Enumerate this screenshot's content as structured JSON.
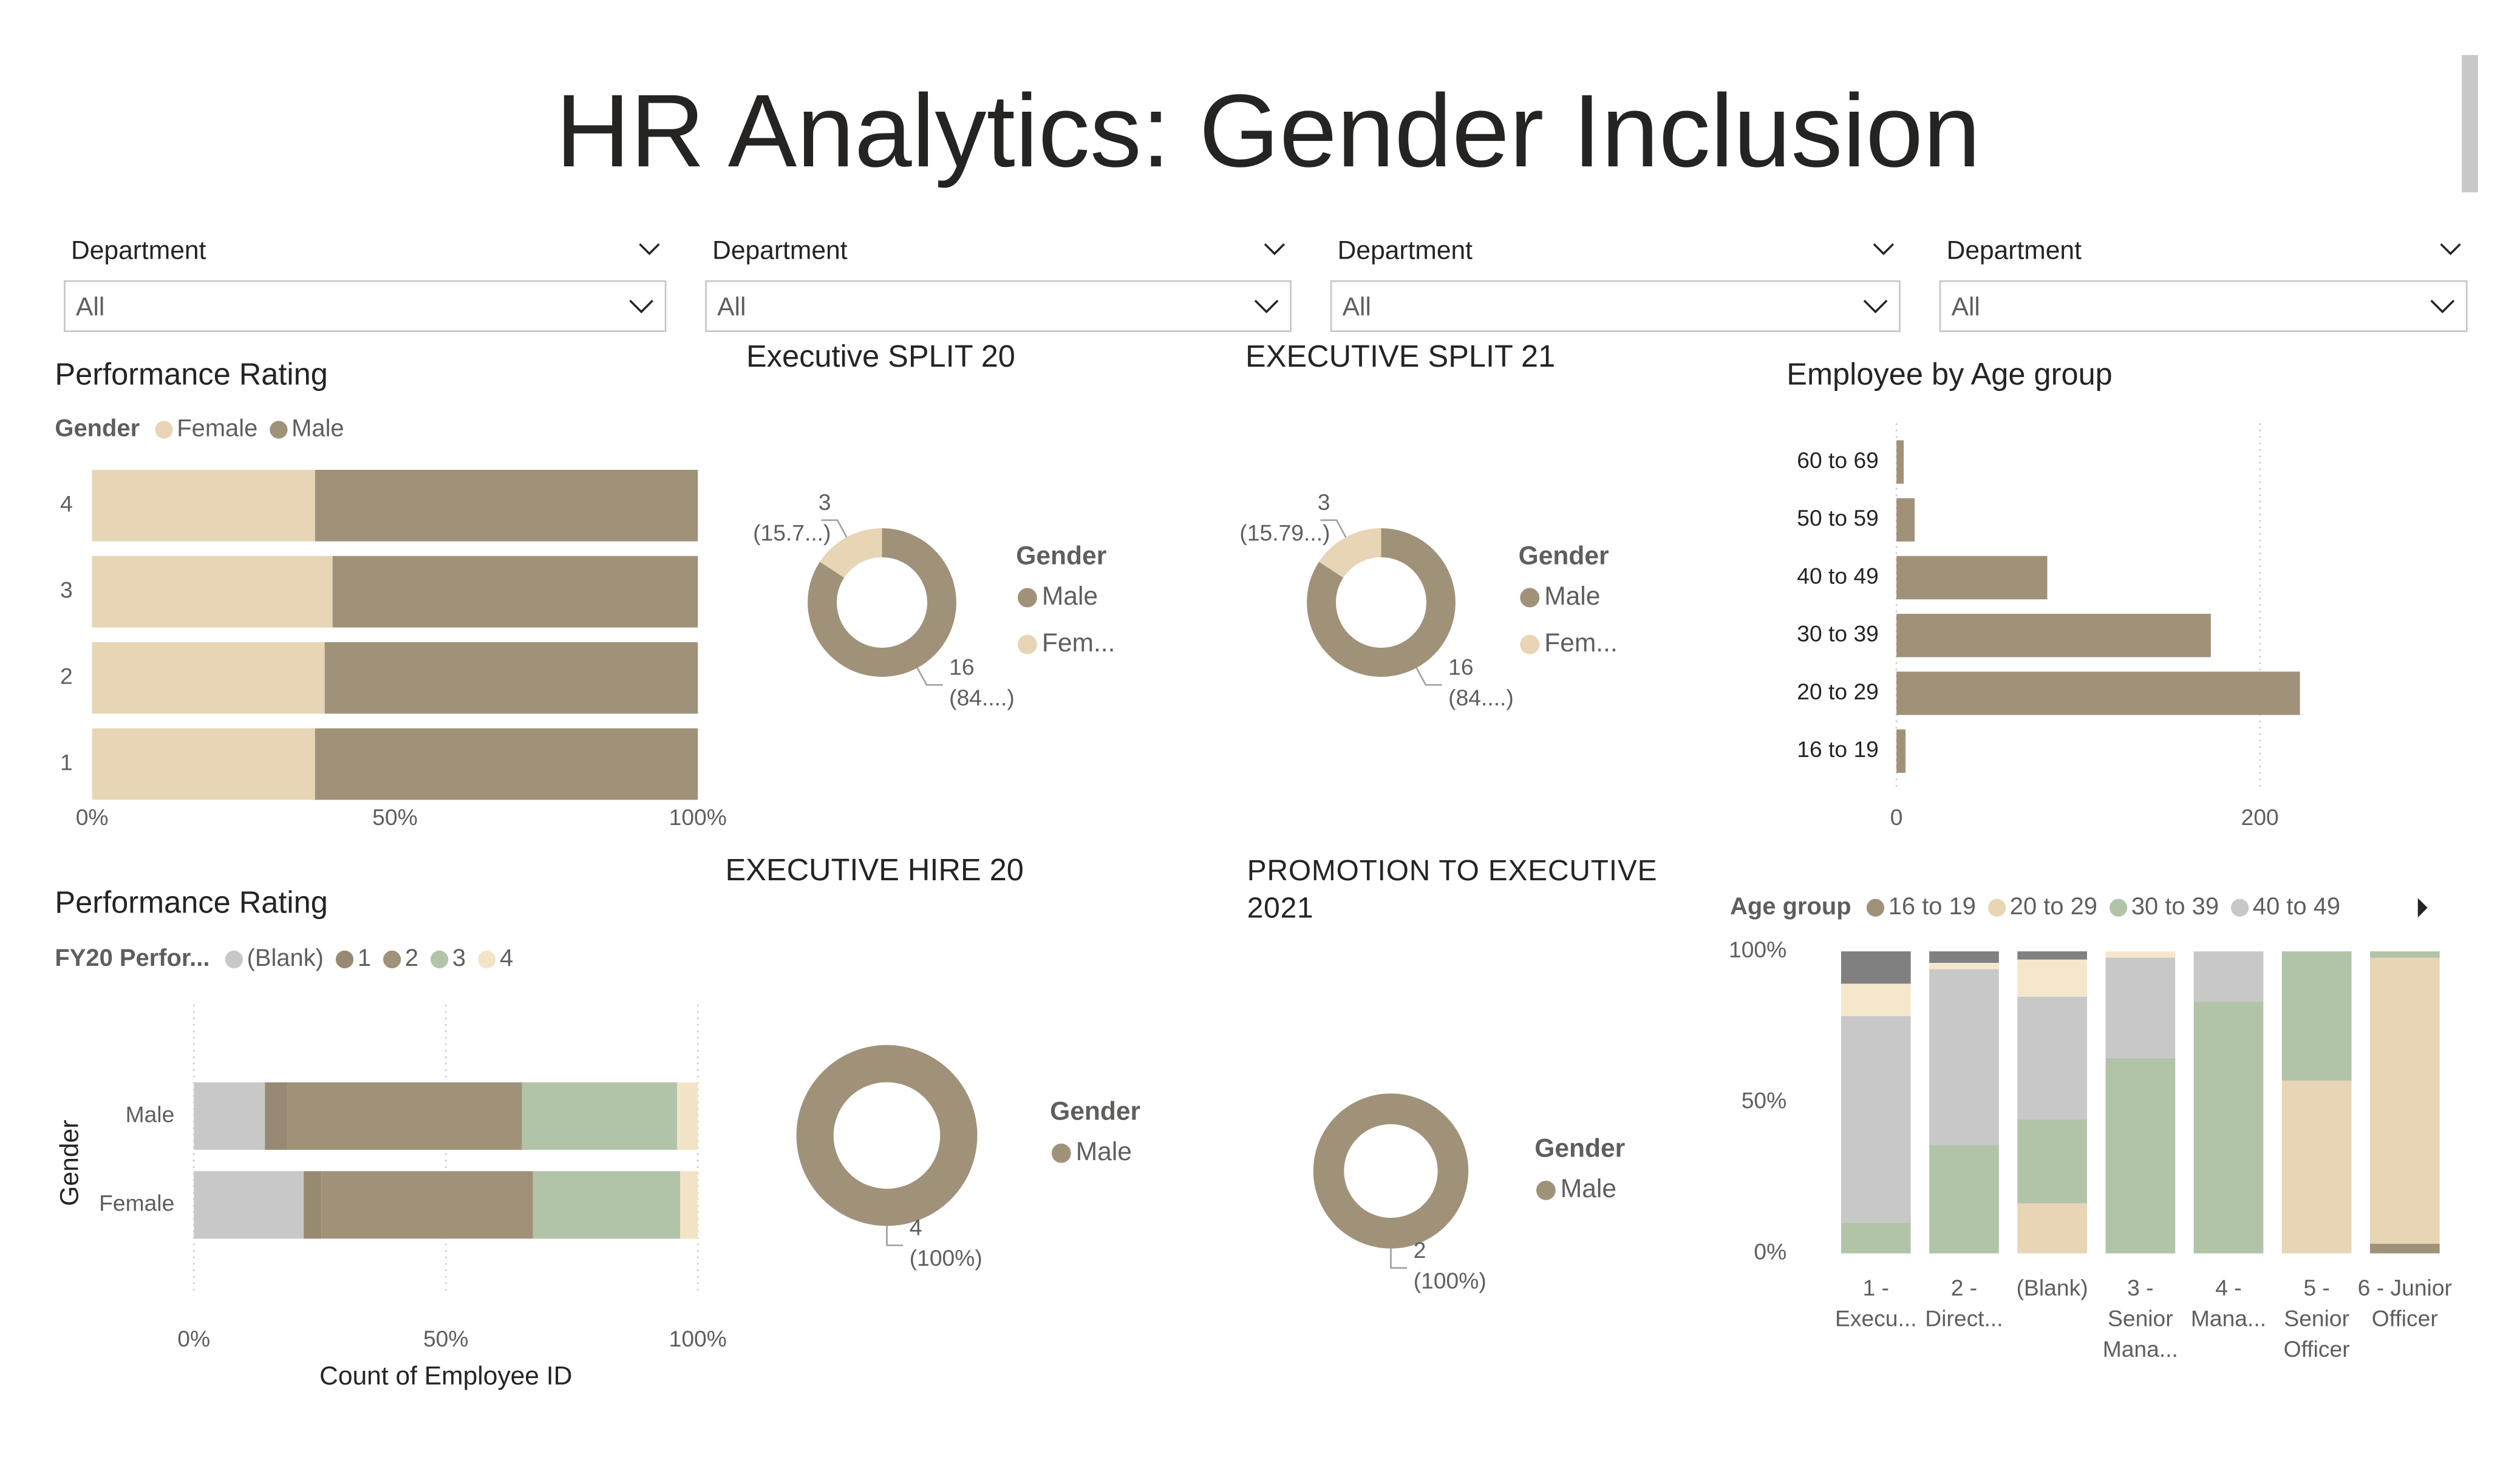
{
  "title": "HR Analytics: Gender Inclusion",
  "slicers": [
    {
      "label": "Department",
      "value": "All"
    },
    {
      "label": "Department",
      "value": "All"
    },
    {
      "label": "Department",
      "value": "All"
    },
    {
      "label": "Department",
      "value": "All"
    }
  ],
  "chart_data": [
    {
      "type": "bar",
      "horizontal": true,
      "stacked": true,
      "title": "Performance Rating",
      "legend_title": "Gender",
      "categories": [
        "4",
        "3",
        "2",
        "1"
      ],
      "series": [
        {
          "name": "Female",
          "color": "#e8d5b5",
          "values": [
            36.8,
            39.7,
            38.4,
            36.8
          ]
        },
        {
          "name": "Male",
          "color": "#a09279",
          "values": [
            63.2,
            60.3,
            61.6,
            63.2
          ]
        }
      ],
      "xlim": [
        0,
        100
      ],
      "xticks": [
        {
          "value": 0,
          "label": "0%"
        },
        {
          "value": 50,
          "label": "50%"
        },
        {
          "value": 100,
          "label": "100%"
        }
      ],
      "grid": false
    },
    {
      "type": "donut",
      "title": "Executive SPLIT 20",
      "legend_title": "Gender",
      "categories": [
        "Male",
        "Fem..."
      ],
      "values": [
        16,
        3
      ],
      "colors": [
        "#a09279",
        "#e8d5b5"
      ],
      "value_labels": [
        "16",
        "3"
      ],
      "percent_labels": [
        "(84....)",
        "(15.7...)"
      ]
    },
    {
      "type": "donut",
      "title": "EXECUTIVE SPLIT 21",
      "legend_title": "Gender",
      "categories": [
        "Male",
        "Fem..."
      ],
      "values": [
        16,
        3
      ],
      "colors": [
        "#a09279",
        "#e8d5b5"
      ],
      "value_labels": [
        "16",
        "3"
      ],
      "percent_labels": [
        "(84....)",
        "(15.79...)"
      ]
    },
    {
      "type": "bar",
      "horizontal": true,
      "stacked": false,
      "title": "Employee by Age group",
      "categories": [
        "60 to 69",
        "50 to 59",
        "40 to 49",
        "30 to 39",
        "20 to 29",
        "16 to 19"
      ],
      "values": [
        4,
        10,
        83,
        173,
        222,
        5
      ],
      "color": "#a09279",
      "xlim": [
        0,
        240
      ],
      "xticks": [
        0,
        200
      ],
      "grid": true
    },
    {
      "type": "bar",
      "horizontal": true,
      "stacked": true,
      "title": "Performance Rating",
      "legend_title": "FY20 Perfor...",
      "x_label": "Count of Employee ID",
      "y_label": "Gender",
      "categories": [
        "Male",
        "Female"
      ],
      "series": [
        {
          "name": "(Blank)",
          "color": "#c8c8c8",
          "values": [
            14.1,
            21.8
          ]
        },
        {
          "name": "1",
          "color": "#988a72",
          "values": [
            4.5,
            3.5
          ]
        },
        {
          "name": "2",
          "color": "#a09279",
          "values": [
            46.5,
            42.0
          ]
        },
        {
          "name": "3",
          "color": "#b2c4a8",
          "values": [
            30.8,
            29.2
          ]
        },
        {
          "name": "4",
          "color": "#f3e4c8",
          "values": [
            4.1,
            3.5
          ]
        }
      ],
      "xlim": [
        0,
        100
      ],
      "xticks": [
        {
          "value": 0,
          "label": "0%"
        },
        {
          "value": 50,
          "label": "50%"
        },
        {
          "value": 100,
          "label": "100%"
        }
      ],
      "grid": true
    },
    {
      "type": "donut",
      "title": "EXECUTIVE HIRE 20",
      "legend_title": "Gender",
      "categories": [
        "Male"
      ],
      "values": [
        4
      ],
      "colors": [
        "#a09279"
      ],
      "value_labels": [
        "4"
      ],
      "percent_labels": [
        "(100%)"
      ]
    },
    {
      "type": "donut",
      "title": "PROMOTION TO EXECUTIVE 2021",
      "legend_title": "Gender",
      "categories": [
        "Male"
      ],
      "values": [
        2
      ],
      "colors": [
        "#a09279"
      ],
      "value_labels": [
        "2"
      ],
      "percent_labels": [
        "(100%)"
      ]
    },
    {
      "type": "bar",
      "horizontal": false,
      "stacked": true,
      "legend_title": "Age group",
      "categories": [
        "1 - Execu...",
        "2 - Direct...",
        "(Blank)",
        "3 - Senior Mana...",
        "4 - Mana...",
        "5 - Senior Officer",
        "6 - Junior Officer"
      ],
      "series": [
        {
          "name": "16 to 19",
          "color": "#a09279",
          "values": [
            0,
            0,
            0,
            0,
            0,
            0,
            3.2
          ]
        },
        {
          "name": "20 to 29",
          "color": "#e8d5b5",
          "values": [
            0,
            0,
            16.6,
            0,
            0,
            57.2,
            94.7
          ]
        },
        {
          "name": "30 to 39",
          "color": "#b2c4a8",
          "values": [
            10.2,
            35.8,
            27.8,
            64.7,
            83.4,
            42.8,
            2.1
          ]
        },
        {
          "name": "40 to 49",
          "color": "#c8c8c8",
          "values": [
            68.4,
            58.3,
            40.6,
            33.2,
            16.6,
            0,
            0
          ]
        },
        {
          "name": null,
          "color": "#f5e7cc",
          "values": [
            10.7,
            2.1,
            12.3,
            2.1,
            0,
            0,
            0
          ]
        },
        {
          "name": null,
          "color": "#808080",
          "values": [
            10.7,
            3.8,
            2.7,
            0,
            0,
            0,
            0
          ]
        }
      ],
      "ylim": [
        0,
        100
      ],
      "yticks": [
        {
          "value": 0,
          "label": "0%"
        },
        {
          "value": 50,
          "label": "50%"
        },
        {
          "value": 100,
          "label": "100%"
        }
      ],
      "grid": false
    }
  ]
}
